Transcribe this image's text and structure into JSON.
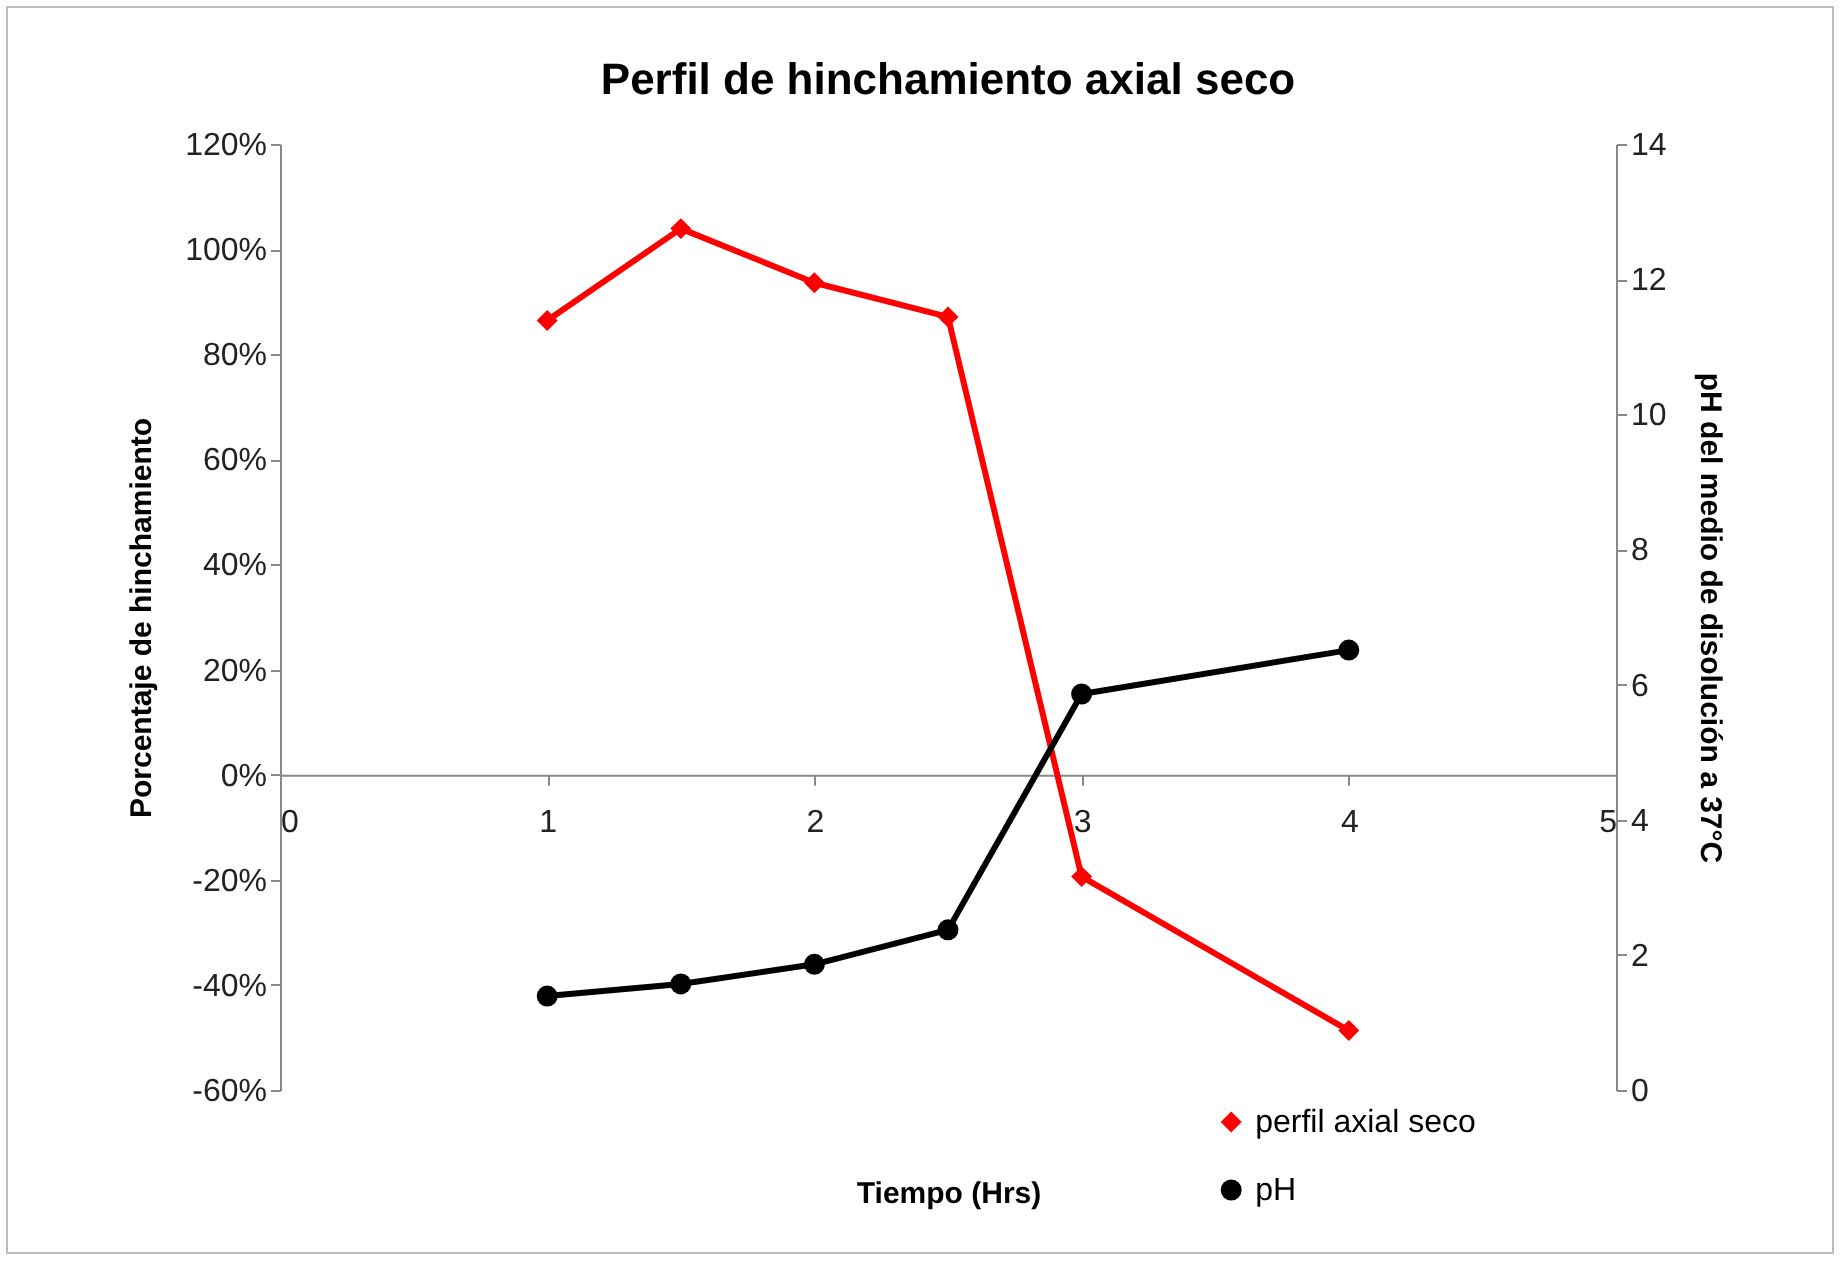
{
  "chart_data": {
    "type": "line",
    "title": "Perfil de hinchamiento axial seco",
    "xlabel": "Tiempo (Hrs)",
    "ylabel": "Porcentaje de hinchamiento",
    "y2label": "pH del medio de disolución a 37°C",
    "x": [
      1,
      1.5,
      2,
      2.5,
      3,
      4
    ],
    "series": [
      {
        "name": "perfil axial seco",
        "color": "#ff0000",
        "marker": "diamond",
        "values": [
          86.4,
          103.9,
          93.6,
          87.1,
          -19.4,
          -48.7
        ]
      },
      {
        "name": "pH",
        "color": "#000000",
        "marker": "circle",
        "axis": "y2",
        "values": [
          1.39,
          1.57,
          1.86,
          2.37,
          5.86,
          6.51
        ]
      }
    ],
    "xlim": [
      0,
      5
    ],
    "xticks": [
      0,
      1,
      2,
      3,
      4,
      5
    ],
    "ylim": [
      -60,
      120
    ],
    "yticks": [
      {
        "value": -60,
        "label": "-60%"
      },
      {
        "value": -40,
        "label": "-40%"
      },
      {
        "value": -20,
        "label": "-20%"
      },
      {
        "value": 0,
        "label": "0%"
      },
      {
        "value": 20,
        "label": "20%"
      },
      {
        "value": 40,
        "label": "40%"
      },
      {
        "value": 60,
        "label": "60%"
      },
      {
        "value": 80,
        "label": "80%"
      },
      {
        "value": 100,
        "label": "100%"
      },
      {
        "value": 120,
        "label": "120%"
      }
    ],
    "y2lim": [
      0,
      14
    ],
    "y2ticks": [
      0,
      2,
      4,
      6,
      8,
      10,
      12,
      14
    ],
    "legend": "bottom right"
  }
}
